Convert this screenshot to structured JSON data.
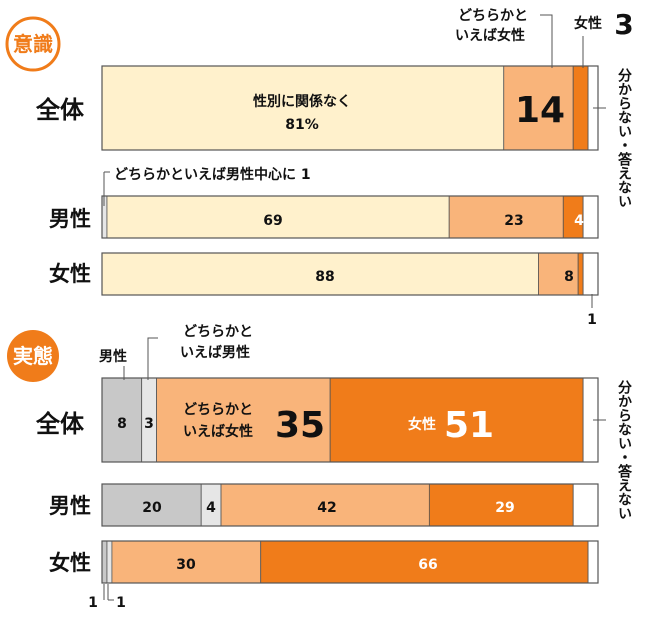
{
  "chart_data": [
    {
      "type": "bar",
      "orientation": "horizontal",
      "stacked": true,
      "title": "意識",
      "categories": [
        "全体",
        "男性",
        "女性"
      ],
      "series": [
        {
          "name": "どちらかといえば男性中心に",
          "values": [
            0,
            1,
            0
          ]
        },
        {
          "name": "性別に関係なく",
          "values": [
            81,
            69,
            88
          ]
        },
        {
          "name": "どちらかといえば女性",
          "values": [
            14,
            23,
            8
          ]
        },
        {
          "name": "女性",
          "values": [
            3,
            4,
            1
          ]
        },
        {
          "name": "分からない・答えない",
          "values": [
            2,
            3,
            3
          ]
        }
      ],
      "display_labels": {
        "全体": [
          "",
          "性別に関係なく",
          "14",
          "",
          ""
        ],
        "男性": [
          "",
          "69",
          "23",
          "4",
          ""
        ],
        "女性": [
          "",
          "88",
          "8",
          "",
          ""
        ]
      },
      "annotations": {
        "total_pct_line": "81%",
        "male_center_note": "どちらかといえば男性中心に 1",
        "female_small": "1",
        "female_top_label": "女性",
        "female_top_value": "3",
        "somewhat_female_line1": "どちらかと",
        "somewhat_female_line2": "いえば女性",
        "unknown": "分からない・答えない"
      },
      "xlim": [
        0,
        100
      ]
    },
    {
      "type": "bar",
      "orientation": "horizontal",
      "stacked": true,
      "title": "実態",
      "categories": [
        "全体",
        "男性",
        "女性"
      ],
      "series": [
        {
          "name": "男性",
          "values": [
            8,
            20,
            1
          ]
        },
        {
          "name": "どちらかといえば男性",
          "values": [
            3,
            4,
            1
          ]
        },
        {
          "name": "どちらかといえば女性",
          "values": [
            35,
            42,
            30
          ]
        },
        {
          "name": "女性",
          "values": [
            51,
            29,
            66
          ]
        },
        {
          "name": "分からない・答えない",
          "values": [
            3,
            5,
            2
          ]
        }
      ],
      "display_labels": {
        "全体": [
          "8",
          "3",
          "35",
          "51",
          ""
        ],
        "男性": [
          "20",
          "4",
          "42",
          "29",
          ""
        ],
        "女性": [
          "",
          "",
          "30",
          "66",
          ""
        ]
      },
      "annotations": {
        "male_top": "男性",
        "somewhat_male_line1": "どちらかと",
        "somewhat_male_line2": "いえば男性",
        "somewhat_female_line1": "どちらかと",
        "somewhat_female_line2": "いえば女性",
        "female_inline": "女性",
        "female_bottom_left_a": "1",
        "female_bottom_left_b": "1",
        "unknown": "分からない・答えない"
      },
      "xlim": [
        0,
        100
      ]
    }
  ],
  "colors": {
    "light_yellow": "#fff1cc",
    "light_orange": "#f9b47a",
    "orange": "#f07c1a",
    "gray": "#c8c8c8",
    "light_gray": "#e6e6e6",
    "white": "#ffffff",
    "badge_orange": "#f07c1a",
    "border": "#555555"
  }
}
